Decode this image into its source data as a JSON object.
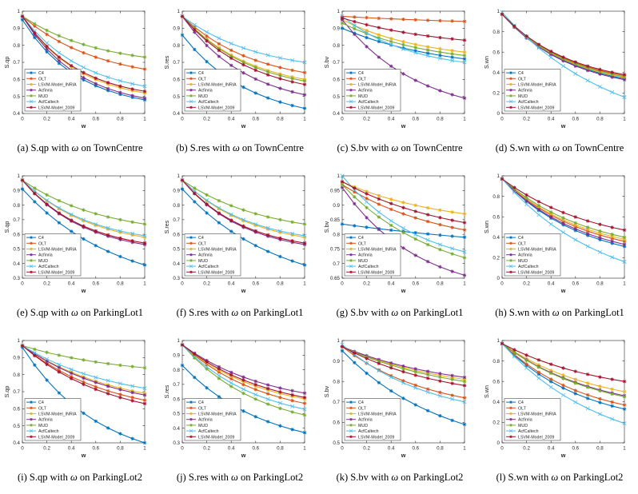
{
  "figure": {
    "series_names": [
      "C4",
      "OLT",
      "LSVM-Model_INRIA",
      "Acfinria",
      "MUD",
      "AcfCaltech",
      "LSVM-Model_2009"
    ],
    "series_colors": [
      "#0072BD",
      "#D95319",
      "#EDB120",
      "#7E2F8E",
      "#77AC30",
      "#4DBEEE",
      "#A2142F"
    ],
    "series_markers": [
      "asterisk",
      "asterisk",
      "asterisk",
      "asterisk",
      "asterisk",
      "cross",
      "asterisk"
    ],
    "xlabel": "w",
    "omega_symbol": "ω",
    "with_word": "with",
    "on_word": "on"
  },
  "chart_data": [
    {
      "type": "line",
      "letter": "(a)",
      "metric": "S.qp",
      "dataset": "TownCentre",
      "ylabel": "S.qp",
      "xlim": [
        0,
        1
      ],
      "ylim": [
        0.4,
        1
      ],
      "yticks": [
        0.4,
        0.5,
        0.6,
        0.7,
        0.8,
        0.9,
        1
      ],
      "xticks": [
        0,
        0.2,
        0.4,
        0.6,
        0.8,
        1
      ],
      "series": [
        {
          "name": "C4",
          "start": 0.95,
          "end": 0.48,
          "curv": 2.2
        },
        {
          "name": "OLT",
          "start": 0.97,
          "end": 0.66,
          "curv": 1.6
        },
        {
          "name": "LSVM-Model_INRIA",
          "start": 0.97,
          "end": 0.52,
          "curv": 2.2
        },
        {
          "name": "Acfinria",
          "start": 0.97,
          "end": 0.49,
          "curv": 2.2
        },
        {
          "name": "MUD",
          "start": 0.97,
          "end": 0.73,
          "curv": 1.6
        },
        {
          "name": "AcfCaltech",
          "start": 0.97,
          "end": 0.56,
          "curv": 2.0
        },
        {
          "name": "LSVM-Model_2009",
          "start": 0.97,
          "end": 0.53,
          "curv": 2.2
        }
      ]
    },
    {
      "type": "line",
      "letter": "(b)",
      "metric": "S.res",
      "dataset": "TownCentre",
      "ylabel": "S.res",
      "xlim": [
        0,
        1
      ],
      "ylim": [
        0.4,
        1
      ],
      "yticks": [
        0.4,
        0.5,
        0.6,
        0.7,
        0.8,
        0.9,
        1
      ],
      "xticks": [
        0,
        0.2,
        0.4,
        0.6,
        0.8,
        1
      ],
      "series": [
        {
          "name": "C4",
          "start": 0.86,
          "end": 0.43,
          "curv": 1.8
        },
        {
          "name": "OLT",
          "start": 0.97,
          "end": 0.64,
          "curv": 1.7
        },
        {
          "name": "LSVM-Model_INRIA",
          "start": 0.97,
          "end": 0.6,
          "curv": 1.8
        },
        {
          "name": "Acfinria",
          "start": 0.97,
          "end": 0.51,
          "curv": 1.9
        },
        {
          "name": "MUD",
          "start": 0.97,
          "end": 0.59,
          "curv": 1.8
        },
        {
          "name": "AcfCaltech",
          "start": 0.97,
          "end": 0.7,
          "curv": 1.6
        },
        {
          "name": "LSVM-Model_2009",
          "start": 0.97,
          "end": 0.57,
          "curv": 1.8
        }
      ]
    },
    {
      "type": "line",
      "letter": "(c)",
      "metric": "S.bv",
      "dataset": "TownCentre",
      "ylabel": "S.bv",
      "xlim": [
        0,
        1
      ],
      "ylim": [
        0.4,
        1
      ],
      "yticks": [
        0.4,
        0.5,
        0.6,
        0.7,
        0.8,
        0.9,
        1
      ],
      "xticks": [
        0,
        0.2,
        0.4,
        0.6,
        0.8,
        1
      ],
      "series": [
        {
          "name": "C4",
          "start": 0.9,
          "end": 0.72,
          "curv": 1.2
        },
        {
          "name": "OLT",
          "start": 0.97,
          "end": 0.94,
          "curv": 0.8
        },
        {
          "name": "LSVM-Model_INRIA",
          "start": 0.95,
          "end": 0.76,
          "curv": 1.5
        },
        {
          "name": "Acfinria",
          "start": 0.95,
          "end": 0.49,
          "curv": 1.6
        },
        {
          "name": "MUD",
          "start": 0.93,
          "end": 0.74,
          "curv": 1.4
        },
        {
          "name": "AcfCaltech",
          "start": 0.97,
          "end": 0.7,
          "curv": 1.8
        },
        {
          "name": "LSVM-Model_2009",
          "start": 0.96,
          "end": 0.83,
          "curv": 1.2
        }
      ]
    },
    {
      "type": "line",
      "letter": "(d)",
      "metric": "S.wn",
      "dataset": "TownCentre",
      "ylabel": "S.wn",
      "xlim": [
        0,
        1
      ],
      "ylim": [
        0,
        1
      ],
      "yticks": [
        0,
        0.2,
        0.4,
        0.6,
        0.8,
        1
      ],
      "xticks": [
        0,
        0.2,
        0.4,
        0.6,
        0.8,
        1
      ],
      "series": [
        {
          "name": "C4",
          "start": 0.97,
          "end": 0.34,
          "curv": 1.8
        },
        {
          "name": "OLT",
          "start": 0.97,
          "end": 0.37,
          "curv": 1.8
        },
        {
          "name": "LSVM-Model_INRIA",
          "start": 0.97,
          "end": 0.35,
          "curv": 1.8
        },
        {
          "name": "Acfinria",
          "start": 0.97,
          "end": 0.33,
          "curv": 1.8
        },
        {
          "name": "MUD",
          "start": 0.97,
          "end": 0.36,
          "curv": 1.8
        },
        {
          "name": "AcfCaltech",
          "start": 0.99,
          "end": 0.16,
          "curv": 1.1
        },
        {
          "name": "LSVM-Model_2009",
          "start": 0.97,
          "end": 0.38,
          "curv": 1.8
        }
      ]
    },
    {
      "type": "line",
      "letter": "(e)",
      "metric": "S.qp",
      "dataset": "ParkingLot1",
      "ylabel": "S.qp",
      "xlim": [
        0,
        1
      ],
      "ylim": [
        0.3,
        1
      ],
      "yticks": [
        0.3,
        0.4,
        0.5,
        0.6,
        0.7,
        0.8,
        0.9,
        1
      ],
      "xticks": [
        0,
        0.2,
        0.4,
        0.6,
        0.8,
        1
      ],
      "series": [
        {
          "name": "C4",
          "start": 0.91,
          "end": 0.39,
          "curv": 1.3
        },
        {
          "name": "OLT",
          "start": 0.97,
          "end": 0.54,
          "curv": 2.0
        },
        {
          "name": "LSVM-Model_INRIA",
          "start": 0.97,
          "end": 0.58,
          "curv": 1.8
        },
        {
          "name": "Acfinria",
          "start": 0.97,
          "end": 0.53,
          "curv": 2.0
        },
        {
          "name": "MUD",
          "start": 0.97,
          "end": 0.67,
          "curv": 1.5
        },
        {
          "name": "AcfCaltech",
          "start": 0.97,
          "end": 0.59,
          "curv": 1.8
        },
        {
          "name": "LSVM-Model_2009",
          "start": 0.97,
          "end": 0.54,
          "curv": 2.0
        }
      ]
    },
    {
      "type": "line",
      "letter": "(f)",
      "metric": "S.res",
      "dataset": "ParkingLot1",
      "ylabel": "S.res",
      "xlim": [
        0,
        1
      ],
      "ylim": [
        0.3,
        1
      ],
      "yticks": [
        0.3,
        0.4,
        0.5,
        0.6,
        0.7,
        0.8,
        0.9,
        1
      ],
      "xticks": [
        0,
        0.2,
        0.4,
        0.6,
        0.8,
        1
      ],
      "series": [
        {
          "name": "C4",
          "start": 0.91,
          "end": 0.39,
          "curv": 1.3
        },
        {
          "name": "OLT",
          "start": 0.97,
          "end": 0.54,
          "curv": 2.0
        },
        {
          "name": "LSVM-Model_INRIA",
          "start": 0.97,
          "end": 0.58,
          "curv": 1.8
        },
        {
          "name": "Acfinria",
          "start": 0.97,
          "end": 0.53,
          "curv": 2.0
        },
        {
          "name": "MUD",
          "start": 0.97,
          "end": 0.67,
          "curv": 1.5
        },
        {
          "name": "AcfCaltech",
          "start": 0.97,
          "end": 0.59,
          "curv": 1.8
        },
        {
          "name": "LSVM-Model_2009",
          "start": 0.97,
          "end": 0.54,
          "curv": 2.0
        }
      ]
    },
    {
      "type": "line",
      "letter": "(g)",
      "metric": "S.bv",
      "dataset": "ParkingLot1",
      "ylabel": "S.bv",
      "xlim": [
        0,
        1
      ],
      "ylim": [
        0.65,
        1
      ],
      "yticks": [
        0.65,
        0.7,
        0.75,
        0.8,
        0.85,
        0.9,
        0.95,
        1
      ],
      "xticks": [
        0,
        0.2,
        0.4,
        0.6,
        0.8,
        1
      ],
      "series": [
        {
          "name": "C4",
          "start": 0.835,
          "end": 0.79,
          "curv": 0.5
        },
        {
          "name": "OLT",
          "start": 0.97,
          "end": 0.815,
          "curv": 1.2
        },
        {
          "name": "LSVM-Model_INRIA",
          "start": 0.98,
          "end": 0.87,
          "curv": 1.2
        },
        {
          "name": "Acfinria",
          "start": 0.96,
          "end": 0.66,
          "curv": 1.6
        },
        {
          "name": "MUD",
          "start": 0.97,
          "end": 0.72,
          "curv": 1.3
        },
        {
          "name": "AcfCaltech",
          "start": 1.0,
          "end": 0.74,
          "curv": 1.6
        },
        {
          "name": "LSVM-Model_2009",
          "start": 0.98,
          "end": 0.84,
          "curv": 1.1
        }
      ]
    },
    {
      "type": "line",
      "letter": "(h)",
      "metric": "S.wn",
      "dataset": "ParkingLot1",
      "ylabel": "S.wn",
      "xlim": [
        0,
        1
      ],
      "ylim": [
        0,
        1
      ],
      "yticks": [
        0,
        0.2,
        0.4,
        0.6,
        0.8,
        1
      ],
      "xticks": [
        0,
        0.2,
        0.4,
        0.6,
        0.8,
        1
      ],
      "series": [
        {
          "name": "C4",
          "start": 0.97,
          "end": 0.31,
          "curv": 1.5
        },
        {
          "name": "OLT",
          "start": 0.97,
          "end": 0.36,
          "curv": 1.5
        },
        {
          "name": "LSVM-Model_INRIA",
          "start": 0.97,
          "end": 0.38,
          "curv": 1.5
        },
        {
          "name": "Acfinria",
          "start": 0.97,
          "end": 0.33,
          "curv": 1.5
        },
        {
          "name": "MUD",
          "start": 0.97,
          "end": 0.4,
          "curv": 1.4
        },
        {
          "name": "AcfCaltech",
          "start": 0.97,
          "end": 0.16,
          "curv": 1.2
        },
        {
          "name": "LSVM-Model_2009",
          "start": 0.97,
          "end": 0.47,
          "curv": 1.3
        }
      ]
    },
    {
      "type": "line",
      "letter": "(i)",
      "metric": "S.qp",
      "dataset": "ParkingLot2",
      "ylabel": "S.qp",
      "xlim": [
        0,
        1
      ],
      "ylim": [
        0.4,
        1
      ],
      "yticks": [
        0.4,
        0.5,
        0.6,
        0.7,
        0.8,
        0.9,
        1
      ],
      "xticks": [
        0,
        0.2,
        0.4,
        0.6,
        0.8,
        1
      ],
      "series": [
        {
          "name": "C4",
          "start": 0.96,
          "end": 0.4,
          "curv": 1.6
        },
        {
          "name": "OLT",
          "start": 0.97,
          "end": 0.65,
          "curv": 1.4
        },
        {
          "name": "LSVM-Model_INRIA",
          "start": 0.97,
          "end": 0.69,
          "curv": 1.3
        },
        {
          "name": "Acfinria",
          "start": 0.97,
          "end": 0.68,
          "curv": 1.3
        },
        {
          "name": "MUD",
          "start": 0.97,
          "end": 0.84,
          "curv": 1.2
        },
        {
          "name": "AcfCaltech",
          "start": 0.97,
          "end": 0.72,
          "curv": 1.3
        },
        {
          "name": "LSVM-Model_2009",
          "start": 0.97,
          "end": 0.63,
          "curv": 1.4
        }
      ]
    },
    {
      "type": "line",
      "letter": "(j)",
      "metric": "S.res",
      "dataset": "ParkingLot2",
      "ylabel": "S.res",
      "xlim": [
        0,
        1
      ],
      "ylim": [
        0.3,
        1
      ],
      "yticks": [
        0.3,
        0.4,
        0.5,
        0.6,
        0.7,
        0.8,
        0.9,
        1
      ],
      "xticks": [
        0,
        0.2,
        0.4,
        0.6,
        0.8,
        1
      ],
      "series": [
        {
          "name": "C4",
          "start": 0.83,
          "end": 0.37,
          "curv": 1.5
        },
        {
          "name": "OLT",
          "start": 0.97,
          "end": 0.57,
          "curv": 1.5
        },
        {
          "name": "LSVM-Model_INRIA",
          "start": 0.97,
          "end": 0.6,
          "curv": 1.5
        },
        {
          "name": "Acfinria",
          "start": 0.97,
          "end": 0.64,
          "curv": 1.4
        },
        {
          "name": "MUD",
          "start": 0.97,
          "end": 0.49,
          "curv": 1.6
        },
        {
          "name": "AcfCaltech",
          "start": 0.97,
          "end": 0.53,
          "curv": 1.6
        },
        {
          "name": "LSVM-Model_2009",
          "start": 0.97,
          "end": 0.61,
          "curv": 1.4
        }
      ]
    },
    {
      "type": "line",
      "letter": "(k)",
      "metric": "S.bv",
      "dataset": "ParkingLot2",
      "ylabel": "S.bv",
      "xlim": [
        0,
        1
      ],
      "ylim": [
        0.5,
        1
      ],
      "yticks": [
        0.5,
        0.6,
        0.7,
        0.8,
        0.9,
        1
      ],
      "xticks": [
        0,
        0.2,
        0.4,
        0.6,
        0.8,
        1
      ],
      "series": [
        {
          "name": "C4",
          "start": 0.95,
          "end": 0.59,
          "curv": 1.2
        },
        {
          "name": "OLT",
          "start": 0.97,
          "end": 0.72,
          "curv": 1.4
        },
        {
          "name": "LSVM-Model_INRIA",
          "start": 0.97,
          "end": 0.81,
          "curv": 1.1
        },
        {
          "name": "Acfinria",
          "start": 0.97,
          "end": 0.82,
          "curv": 1.1
        },
        {
          "name": "MUD",
          "start": 0.97,
          "end": 0.8,
          "curv": 1.1
        },
        {
          "name": "AcfCaltech",
          "start": 0.98,
          "end": 0.7,
          "curv": 1.4
        },
        {
          "name": "LSVM-Model_2009",
          "start": 0.97,
          "end": 0.78,
          "curv": 1.2
        }
      ]
    },
    {
      "type": "line",
      "letter": "(l)",
      "metric": "S.wn",
      "dataset": "ParkingLot2",
      "ylabel": "S.wn",
      "xlim": [
        0,
        1
      ],
      "ylim": [
        0,
        1
      ],
      "yticks": [
        0,
        0.2,
        0.4,
        0.6,
        0.8,
        1
      ],
      "xticks": [
        0,
        0.2,
        0.4,
        0.6,
        0.8,
        1
      ],
      "series": [
        {
          "name": "C4",
          "start": 0.97,
          "end": 0.33,
          "curv": 1.5
        },
        {
          "name": "OLT",
          "start": 0.97,
          "end": 0.37,
          "curv": 1.5
        },
        {
          "name": "LSVM-Model_INRIA",
          "start": 0.97,
          "end": 0.5,
          "curv": 1.3
        },
        {
          "name": "Acfinria",
          "start": 0.97,
          "end": 0.46,
          "curv": 1.3
        },
        {
          "name": "MUD",
          "start": 0.97,
          "end": 0.45,
          "curv": 1.3
        },
        {
          "name": "AcfCaltech",
          "start": 0.97,
          "end": 0.19,
          "curv": 1.2
        },
        {
          "name": "LSVM-Model_2009",
          "start": 0.97,
          "end": 0.6,
          "curv": 1.2
        }
      ]
    }
  ]
}
